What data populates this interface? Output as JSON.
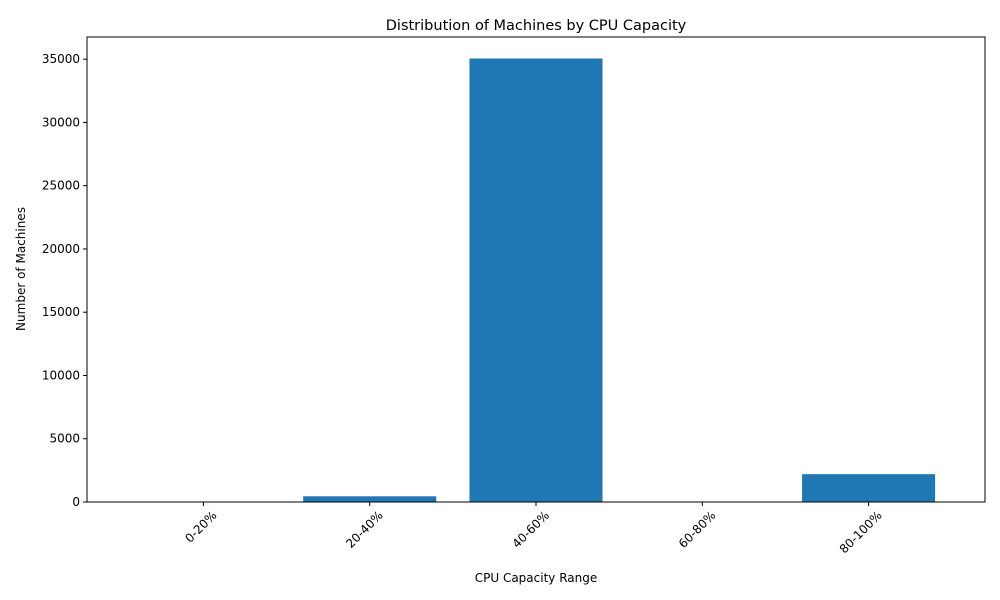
{
  "chart_data": {
    "type": "bar",
    "title": "Distribution of Machines by CPU Capacity",
    "xlabel": "CPU Capacity Range",
    "ylabel": "Number of Machines",
    "categories": [
      "0-20%",
      "20-40%",
      "40-60%",
      "60-80%",
      "80-100%"
    ],
    "values": [
      0,
      450,
      35050,
      0,
      2200
    ],
    "ylim": [
      0,
      36750
    ],
    "yticks": [
      0,
      5000,
      10000,
      15000,
      20000,
      25000,
      30000,
      35000
    ],
    "xtick_rotation_deg": 45,
    "grid": false,
    "legend": "none",
    "bar_color": "#1f77b4"
  }
}
